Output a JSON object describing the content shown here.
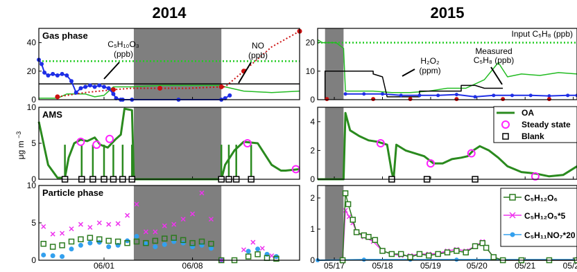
{
  "chart_data": {
    "type": "line",
    "columns": [
      {
        "year": "2014",
        "xticks": [
          "06/01",
          "06/08"
        ]
      },
      {
        "year": "2015",
        "xticks": [
          "05/17",
          "05/18",
          "05/19",
          "05/20",
          "05/21",
          "05/22"
        ]
      }
    ],
    "ylabel": "μg m",
    "ylabel_sup": "−3",
    "rows": [
      {
        "label": "Gas phase",
        "ylim_2014": [
          0,
          50
        ],
        "yticks_2014": [
          "0",
          "20",
          "40"
        ],
        "ylim_2015": [
          0,
          25
        ],
        "yticks_2015": [
          "0",
          "10",
          "20"
        ]
      },
      {
        "label": "AMS",
        "ylim_2014": [
          0,
          10
        ],
        "yticks_2014": [
          "0",
          "5",
          "10"
        ],
        "ylim_2015": [
          0,
          5
        ],
        "yticks_2015": [
          "0",
          "2",
          "4"
        ]
      },
      {
        "label": "Particle phase",
        "ylim_2014": [
          0,
          10
        ],
        "yticks_2014": [
          "0",
          "5",
          "10"
        ],
        "ylim_2015": [
          0,
          2.4
        ],
        "yticks_2015": [
          "0",
          "1",
          "2"
        ]
      }
    ],
    "gas_annotations": {
      "c5h10o3": "C₅H₁₀O₃",
      "c5h10o3_unit": "(ppb)",
      "no": "NO",
      "no_unit": "(ppb)",
      "input": "Input C₅H₈ (ppb)",
      "h2o2": "H₂O₂",
      "h2o2_unit": "(ppm)",
      "measured": "Measured",
      "measured_species": "C₅H₈ (ppb)"
    },
    "legend_ams": [
      "OA",
      "Steady state",
      "Blank"
    ],
    "legend_particle": [
      "C₅H₁₂O₆",
      "C₅H₁₂O₅*5",
      "C₅H₁₁NO₇*20"
    ],
    "colors": {
      "oa": "#2a8a1e",
      "green": "#22bb22",
      "input_dot": "#22cc22",
      "no": "#cc1111",
      "blue": "#1e2ee6",
      "steady": "#ff22ff",
      "blank": "#000000",
      "c5h12o6": "#2a7a1e",
      "c5h12o5": "#ee33ee",
      "c5h11no7": "#33a0ee",
      "gray": "#7f7f7f"
    },
    "series_2014": {
      "gas_c5h10o3": [
        [
          0,
          28
        ],
        [
          0.03,
          25
        ],
        [
          0.06,
          19
        ],
        [
          0.1,
          17
        ],
        [
          0.15,
          18
        ],
        [
          0.2,
          17
        ],
        [
          0.25,
          18
        ],
        [
          0.3,
          17
        ],
        [
          0.35,
          13
        ],
        [
          0.4,
          5
        ],
        [
          0.45,
          8
        ],
        [
          0.5,
          9
        ],
        [
          0.55,
          10
        ],
        [
          0.6,
          9
        ],
        [
          0.65,
          10
        ],
        [
          0.7,
          9
        ],
        [
          0.75,
          8
        ],
        [
          0.8,
          4
        ],
        [
          0.83,
          1
        ],
        [
          0.88,
          0
        ],
        [
          0.9,
          0
        ],
        [
          1.0,
          0
        ],
        [
          1.5,
          0
        ],
        [
          1.96,
          0
        ],
        [
          2.0,
          1
        ],
        [
          2.05,
          3
        ]
      ],
      "gas_no": [
        [
          0.2,
          2
        ],
        [
          0.5,
          5
        ],
        [
          0.8,
          7
        ],
        [
          1.0,
          8
        ],
        [
          1.3,
          8
        ],
        [
          1.6,
          8
        ],
        [
          1.96,
          9
        ],
        [
          2.0,
          9
        ],
        [
          2.2,
          20
        ],
        [
          2.5,
          37
        ],
        [
          2.8,
          48
        ]
      ],
      "gas_green": [
        [
          0,
          1
        ],
        [
          0.1,
          1
        ],
        [
          0.2,
          1
        ],
        [
          0.3,
          4
        ],
        [
          0.4,
          4
        ],
        [
          0.5,
          4
        ],
        [
          0.6,
          2
        ],
        [
          0.7,
          3
        ],
        [
          0.8,
          9
        ],
        [
          0.9,
          9
        ],
        [
          1.0,
          9
        ],
        [
          1.3,
          10
        ],
        [
          1.6,
          10
        ],
        [
          1.96,
          10
        ],
        [
          2.0,
          9
        ],
        [
          2.2,
          6
        ],
        [
          2.5,
          5
        ],
        [
          2.8,
          6
        ]
      ],
      "gas_green_dot": [
        [
          0,
          27
        ],
        [
          2.8,
          27
        ]
      ],
      "gas_black": [
        [
          0,
          11
        ],
        [
          2.8,
          11
        ]
      ],
      "oa": [
        [
          0,
          8
        ],
        [
          0.1,
          2
        ],
        [
          0.2,
          0.2
        ],
        [
          0.28,
          0.2
        ],
        [
          0.32,
          3
        ],
        [
          0.38,
          5
        ],
        [
          0.45,
          5.5
        ],
        [
          0.52,
          5.3
        ],
        [
          0.6,
          5.8
        ],
        [
          0.66,
          4.8
        ],
        [
          0.74,
          4.4
        ],
        [
          0.82,
          5.5
        ],
        [
          0.88,
          6.2
        ],
        [
          0.92,
          9.8
        ],
        [
          1.0,
          9.6
        ],
        [
          1.02,
          0
        ],
        [
          1.96,
          0
        ],
        [
          2.0,
          2
        ],
        [
          2.1,
          4
        ],
        [
          2.2,
          5.2
        ],
        [
          2.35,
          5
        ],
        [
          2.45,
          3
        ],
        [
          2.5,
          2
        ],
        [
          2.6,
          1.2
        ],
        [
          2.65,
          1.2
        ],
        [
          2.8,
          1.4
        ]
      ],
      "blank_x": [
        0.28,
        0.46,
        0.58,
        0.7,
        0.8,
        0.9,
        1.0,
        1.96,
        2.04,
        2.12,
        2.28
      ],
      "steady": [
        [
          0.45,
          5.2
        ],
        [
          0.62,
          4.8
        ],
        [
          0.76,
          5.6
        ],
        [
          2.24,
          5.0
        ],
        [
          2.76,
          1.4
        ]
      ],
      "particle_c5h12o6": [
        [
          0.05,
          2.2
        ],
        [
          0.15,
          1.8
        ],
        [
          0.25,
          2
        ],
        [
          0.35,
          2.5
        ],
        [
          0.45,
          2.8
        ],
        [
          0.55,
          3
        ],
        [
          0.65,
          2.8
        ],
        [
          0.75,
          2.6
        ],
        [
          0.85,
          2.5
        ],
        [
          0.95,
          2.3
        ],
        [
          1.05,
          2.5
        ],
        [
          1.15,
          2.3
        ],
        [
          1.25,
          2.6
        ],
        [
          1.35,
          2.9
        ],
        [
          1.45,
          3
        ],
        [
          1.55,
          2.7
        ],
        [
          1.65,
          2.3
        ],
        [
          1.75,
          2.5
        ],
        [
          1.85,
          2.2
        ],
        [
          1.96,
          0
        ],
        [
          2.1,
          0
        ],
        [
          2.25,
          0.5
        ],
        [
          2.35,
          0.8
        ],
        [
          2.45,
          0.3
        ],
        [
          2.55,
          0.2
        ]
      ],
      "particle_c5h12o5": [
        [
          0.05,
          4.5
        ],
        [
          0.15,
          3.5
        ],
        [
          0.25,
          3.6
        ],
        [
          0.35,
          4.2
        ],
        [
          0.45,
          4.8
        ],
        [
          0.55,
          4.4
        ],
        [
          0.65,
          5
        ],
        [
          0.75,
          4.8
        ],
        [
          0.85,
          4.9
        ],
        [
          0.95,
          6
        ],
        [
          1.05,
          7.5
        ],
        [
          1.15,
          3.8
        ],
        [
          1.25,
          3.8
        ],
        [
          1.35,
          4.6
        ],
        [
          1.45,
          4.8
        ],
        [
          1.55,
          5.5
        ],
        [
          1.65,
          6.2
        ],
        [
          1.75,
          9
        ],
        [
          1.85,
          5.5
        ],
        [
          1.96,
          0
        ],
        [
          2.2,
          1.4
        ],
        [
          2.3,
          2.4
        ],
        [
          2.4,
          1.6
        ],
        [
          2.5,
          0.6
        ]
      ],
      "particle_c5h11no7": [
        [
          0.05,
          0.7
        ],
        [
          0.15,
          0.6
        ],
        [
          0.25,
          0.5
        ],
        [
          0.35,
          1.5
        ],
        [
          0.45,
          2
        ],
        [
          0.55,
          2.3
        ],
        [
          0.65,
          2.4
        ],
        [
          0.75,
          1.8
        ],
        [
          0.85,
          2
        ],
        [
          0.95,
          2.6
        ],
        [
          1.05,
          3.2
        ],
        [
          1.15,
          2.2
        ],
        [
          1.25,
          1.8
        ],
        [
          1.35,
          2.1
        ],
        [
          1.45,
          2.5
        ],
        [
          1.55,
          2.3
        ],
        [
          1.65,
          1.8
        ],
        [
          1.75,
          2
        ],
        [
          1.85,
          1.6
        ],
        [
          1.96,
          0
        ],
        [
          2.25,
          1.2
        ],
        [
          2.35,
          1.5
        ],
        [
          2.45,
          0.8
        ],
        [
          2.55,
          0.5
        ]
      ]
    },
    "series_2015": {
      "gas_green": [
        [
          0,
          21
        ],
        [
          0.05,
          20
        ],
        [
          0.12,
          20
        ],
        [
          0.2,
          20
        ],
        [
          0.28,
          18
        ],
        [
          0.3,
          3
        ],
        [
          0.4,
          3
        ],
        [
          0.6,
          3
        ],
        [
          0.8,
          2.5
        ],
        [
          1.0,
          2.5
        ],
        [
          1.2,
          3
        ],
        [
          1.4,
          4
        ],
        [
          1.6,
          4
        ],
        [
          1.8,
          7
        ],
        [
          1.95,
          13
        ],
        [
          2.05,
          8
        ],
        [
          2.2,
          9
        ],
        [
          2.4,
          8.5
        ],
        [
          2.6,
          9.5
        ],
        [
          2.8,
          9
        ]
      ],
      "gas_green_dot": [
        [
          0,
          20
        ],
        [
          2.8,
          20
        ]
      ],
      "gas_h2o2": [
        [
          0.08,
          0
        ],
        [
          0.08,
          10
        ],
        [
          0.6,
          10
        ],
        [
          0.6,
          9
        ],
        [
          0.7,
          8
        ],
        [
          0.75,
          1
        ],
        [
          1.1,
          1
        ],
        [
          1.1,
          3
        ],
        [
          1.55,
          3
        ],
        [
          1.55,
          5
        ],
        [
          1.7,
          5
        ],
        [
          1.8,
          4
        ],
        [
          2.0,
          4
        ]
      ],
      "gas_blue": [
        [
          0.3,
          2
        ],
        [
          0.5,
          2
        ],
        [
          0.7,
          2
        ],
        [
          0.9,
          1.5
        ],
        [
          1.1,
          1.5
        ],
        [
          1.3,
          1.5
        ],
        [
          1.5,
          1.8
        ],
        [
          1.7,
          1
        ],
        [
          1.9,
          1.5
        ],
        [
          2.1,
          1.5
        ],
        [
          2.3,
          1.5
        ],
        [
          2.5,
          1.3
        ],
        [
          2.7,
          1.5
        ],
        [
          2.8,
          1.5
        ]
      ],
      "gas_red_x": [
        0.1,
        0.6,
        1.0,
        1.5,
        2.0,
        2.5
      ],
      "oa": [
        [
          0,
          0
        ],
        [
          0.28,
          0
        ],
        [
          0.3,
          4.6
        ],
        [
          0.35,
          3.4
        ],
        [
          0.45,
          3
        ],
        [
          0.55,
          2.7
        ],
        [
          0.65,
          2.6
        ],
        [
          0.75,
          2.4
        ],
        [
          0.8,
          0.5
        ],
        [
          0.82,
          0
        ],
        [
          0.85,
          2.4
        ],
        [
          0.95,
          2.0
        ],
        [
          1.05,
          1.8
        ],
        [
          1.15,
          1.6
        ],
        [
          1.25,
          1.1
        ],
        [
          1.35,
          1.1
        ],
        [
          1.45,
          1.4
        ],
        [
          1.55,
          1.5
        ],
        [
          1.62,
          1.6
        ],
        [
          1.68,
          2
        ],
        [
          1.75,
          2.3
        ],
        [
          1.85,
          2.0
        ],
        [
          1.95,
          1.5
        ],
        [
          2.05,
          0.9
        ],
        [
          2.2,
          0.5
        ],
        [
          2.35,
          0.4
        ],
        [
          2.5,
          0.2
        ],
        [
          2.65,
          0.3
        ],
        [
          2.8,
          0.9
        ]
      ],
      "blank_x": [
        0.8,
        1.18,
        1.7
      ],
      "steady": [
        [
          0.68,
          2.5
        ],
        [
          1.22,
          1.1
        ],
        [
          1.66,
          1.8
        ],
        [
          2.35,
          0.2
        ]
      ],
      "particle_c5h12o6": [
        [
          0.27,
          0
        ],
        [
          0.3,
          2.15
        ],
        [
          0.33,
          1.8
        ],
        [
          0.38,
          1.3
        ],
        [
          0.42,
          0.9
        ],
        [
          0.5,
          0.8
        ],
        [
          0.55,
          0.75
        ],
        [
          0.62,
          0.65
        ],
        [
          0.7,
          0.3
        ],
        [
          0.8,
          0.2
        ],
        [
          0.9,
          0.2
        ],
        [
          1.0,
          0.1
        ],
        [
          1.1,
          0.2
        ],
        [
          1.2,
          0.15
        ],
        [
          1.3,
          0.2
        ],
        [
          1.4,
          0.25
        ],
        [
          1.5,
          0.3
        ],
        [
          1.6,
          0.25
        ],
        [
          1.7,
          0.45
        ],
        [
          1.78,
          0.55
        ],
        [
          1.82,
          0.4
        ],
        [
          1.9,
          0.1
        ],
        [
          2.0,
          0
        ],
        [
          2.2,
          0
        ],
        [
          2.5,
          0
        ],
        [
          2.8,
          0
        ]
      ],
      "particle_c5h12o5": [
        [
          0.27,
          0
        ],
        [
          0.3,
          1.6
        ],
        [
          0.34,
          1.4
        ],
        [
          0.38,
          1.2
        ],
        [
          0.42,
          0.9
        ],
        [
          0.5,
          0.75
        ],
        [
          0.6,
          0.6
        ],
        [
          0.7,
          0.3
        ],
        [
          0.8,
          0.2
        ],
        [
          0.9,
          0.15
        ],
        [
          1.0,
          0.15
        ],
        [
          1.1,
          0.2
        ],
        [
          1.2,
          0.2
        ],
        [
          1.3,
          0.22
        ],
        [
          1.4,
          0.3
        ],
        [
          1.5,
          0.35
        ],
        [
          1.6,
          0.3
        ],
        [
          1.7,
          0.45
        ],
        [
          1.78,
          0.6
        ],
        [
          1.82,
          0.4
        ],
        [
          1.9,
          0.1
        ],
        [
          2.0,
          0
        ],
        [
          2.5,
          0
        ],
        [
          2.8,
          0
        ]
      ],
      "particle_c5h11no7": [
        [
          0,
          0
        ],
        [
          0.5,
          0.02
        ],
        [
          1.0,
          0.02
        ],
        [
          1.5,
          0.02
        ],
        [
          2.0,
          0.02
        ],
        [
          2.5,
          0.02
        ],
        [
          2.8,
          0.02
        ]
      ]
    }
  }
}
